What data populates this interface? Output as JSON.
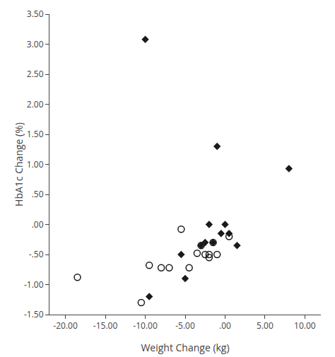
{
  "chart_data": {
    "type": "scatter",
    "xlabel": "Weight Change (kg)",
    "ylabel": "HbA1c Change (%)",
    "series": [
      {
        "marker": "diamond",
        "color": "#1a1a1a",
        "x": [
          -10.0,
          -9.5,
          -5.5,
          -5.0,
          -3.0,
          -2.5,
          -2.0,
          -1.5,
          -1.0,
          -0.5,
          0.0,
          0.5,
          1.5,
          8.0
        ],
        "values": [
          3.08,
          -1.2,
          -0.5,
          -0.9,
          -0.35,
          -0.3,
          0.0,
          -0.3,
          1.3,
          -0.15,
          0.0,
          -0.15,
          -0.35,
          0.93
        ]
      },
      {
        "marker": "open_circle",
        "color": "#1a1a1a",
        "x": [
          -18.5,
          -10.5,
          -9.5,
          -8.0,
          -7.0,
          -5.5,
          -4.5,
          -3.5,
          -3.0,
          -2.5,
          -2.0,
          -2.0,
          -1.5,
          -1.0,
          0.5
        ],
        "values": [
          -0.88,
          -1.3,
          -0.68,
          -0.72,
          -0.72,
          -0.08,
          -0.72,
          -0.48,
          -0.35,
          -0.5,
          -0.5,
          -0.55,
          -0.3,
          -0.5,
          -0.2
        ]
      }
    ],
    "xlim": [
      -22.0,
      12.0
    ],
    "ylim": [
      -1.5,
      3.5
    ],
    "xticks": [
      {
        "value": -20,
        "label": "-20.00"
      },
      {
        "value": -15,
        "label": "-15.00"
      },
      {
        "value": -10,
        "label": "-10.00"
      },
      {
        "value": -5,
        "label": "-5.00"
      },
      {
        "value": 0,
        "label": ".00"
      },
      {
        "value": 5,
        "label": "5.00"
      },
      {
        "value": 10,
        "label": "10.00"
      }
    ],
    "yticks": [
      {
        "value": -1.5,
        "label": "-1.50"
      },
      {
        "value": -1.0,
        "label": "-1.00"
      },
      {
        "value": -0.5,
        "label": "-.50"
      },
      {
        "value": 0.0,
        "label": ".00"
      },
      {
        "value": 0.5,
        "label": ".50"
      },
      {
        "value": 1.0,
        "label": "1.00"
      },
      {
        "value": 1.5,
        "label": "1.50"
      },
      {
        "value": 2.0,
        "label": "2.00"
      },
      {
        "value": 2.5,
        "label": "2.50"
      },
      {
        "value": 3.0,
        "label": "3.00"
      },
      {
        "value": 3.5,
        "label": "3.50"
      }
    ],
    "grid": false,
    "legend": false
  }
}
